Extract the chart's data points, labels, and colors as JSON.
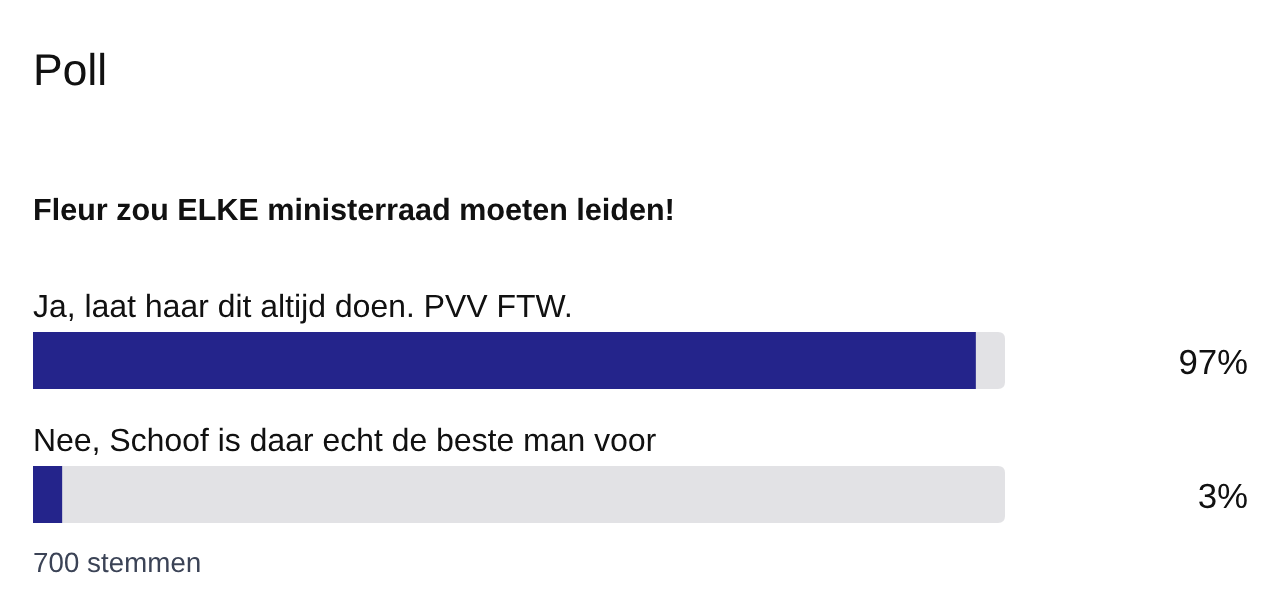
{
  "chart_data": {
    "type": "bar",
    "orientation": "horizontal",
    "title": "Poll",
    "subtitle": "Fleur zou ELKE ministerraad moeten leiden!",
    "categories": [
      "Ja, laat haar dit altijd doen. PVV FTW.",
      "Nee, Schoof is daar echt de beste man voor"
    ],
    "values": [
      97,
      3
    ],
    "value_labels": [
      "97%",
      "3%"
    ],
    "color": "#24248b",
    "xlim": [
      0,
      100
    ],
    "annotations": [
      "700 stemmen"
    ]
  }
}
